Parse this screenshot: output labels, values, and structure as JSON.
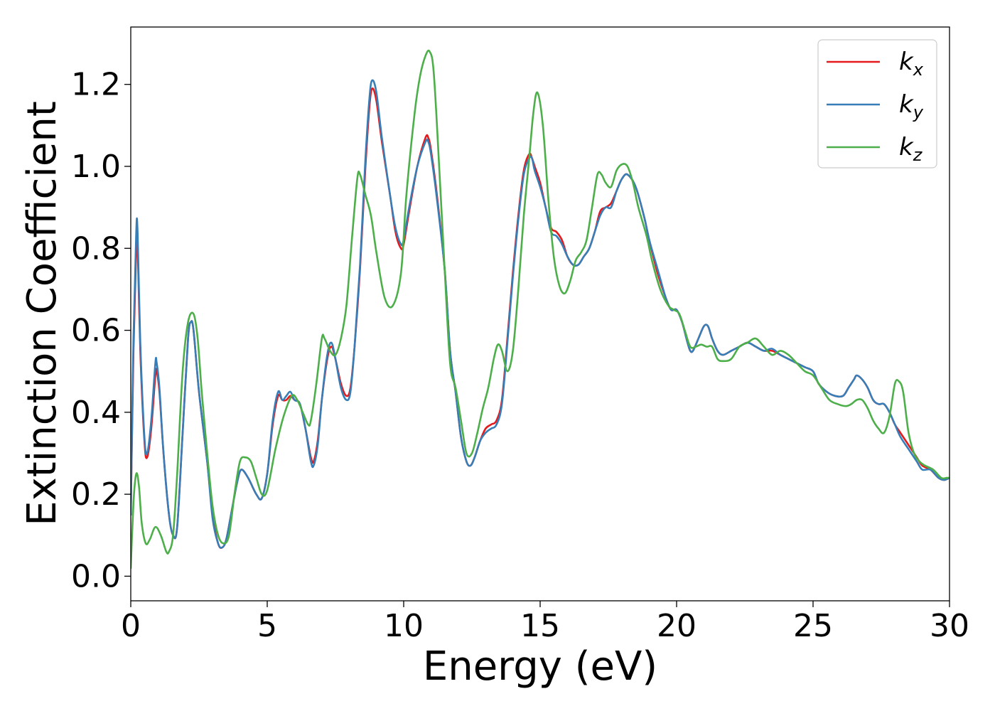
{
  "chart_data": {
    "type": "line",
    "title": "",
    "xlabel": "Energy (eV)",
    "ylabel": "Extinction Coefficient",
    "xlim": [
      0,
      30
    ],
    "ylim": [
      -0.06,
      1.34
    ],
    "xticks": [
      0,
      5,
      10,
      15,
      20,
      25,
      30
    ],
    "xtick_labels": [
      "0",
      "5",
      "10",
      "15",
      "20",
      "25",
      "30"
    ],
    "yticks": [
      0.0,
      0.2,
      0.4,
      0.6,
      0.8,
      1.0,
      1.2
    ],
    "ytick_labels": [
      "0.0",
      "0.2",
      "0.4",
      "0.6",
      "0.8",
      "1.0",
      "1.2"
    ],
    "grid": false,
    "legend_position": "top-right",
    "series": [
      {
        "name": "k_x",
        "legend_base": "k",
        "legend_sub": "x",
        "color": "#e41a1c",
        "x": [
          0,
          0.1,
          0.2,
          0.25,
          0.35,
          0.5,
          0.6,
          0.75,
          0.9,
          0.95,
          1.05,
          1.2,
          1.4,
          1.55,
          1.7,
          1.9,
          2.1,
          2.2,
          2.3,
          2.5,
          2.8,
          3.0,
          3.2,
          3.35,
          3.5,
          3.7,
          3.9,
          4.05,
          4.3,
          4.6,
          4.8,
          5.0,
          5.2,
          5.4,
          5.55,
          5.7,
          5.85,
          6.0,
          6.2,
          6.4,
          6.6,
          6.7,
          6.85,
          7.0,
          7.2,
          7.35,
          7.5,
          7.7,
          7.9,
          8.05,
          8.2,
          8.4,
          8.6,
          8.75,
          8.85,
          9.0,
          9.2,
          9.5,
          9.7,
          9.9,
          10.0,
          10.2,
          10.5,
          10.8,
          10.9,
          11.0,
          11.2,
          11.5,
          11.7,
          11.9,
          12.1,
          12.3,
          12.45,
          12.6,
          12.8,
          13.0,
          13.2,
          13.4,
          13.6,
          13.8,
          14.0,
          14.2,
          14.4,
          14.6,
          14.7,
          14.8,
          15.0,
          15.2,
          15.4,
          15.6,
          15.8,
          16.0,
          16.2,
          16.4,
          16.6,
          16.8,
          17.0,
          17.2,
          17.4,
          17.6,
          17.8,
          18.0,
          18.2,
          18.5,
          18.8,
          19.0,
          19.3,
          19.6,
          19.8,
          20.0,
          20.2,
          20.4,
          20.5,
          20.6,
          20.8,
          21.0,
          21.15,
          21.3,
          21.5,
          21.7,
          22.0,
          22.3,
          22.6,
          22.9,
          23.2,
          23.5,
          23.8,
          24.1,
          24.4,
          24.7,
          25.0,
          25.2,
          25.5,
          25.8,
          26.1,
          26.3,
          26.5,
          26.6,
          26.8,
          27.0,
          27.2,
          27.4,
          27.6,
          27.8,
          28.0,
          28.2,
          28.5,
          28.8,
          29.0,
          29.3,
          29.6,
          29.8,
          30.0
        ],
        "y": [
          0.15,
          0.55,
          0.8,
          0.81,
          0.55,
          0.33,
          0.29,
          0.36,
          0.49,
          0.5,
          0.45,
          0.3,
          0.15,
          0.1,
          0.12,
          0.35,
          0.58,
          0.62,
          0.6,
          0.45,
          0.28,
          0.15,
          0.08,
          0.07,
          0.09,
          0.16,
          0.23,
          0.26,
          0.24,
          0.2,
          0.19,
          0.25,
          0.37,
          0.44,
          0.43,
          0.43,
          0.44,
          0.43,
          0.42,
          0.36,
          0.29,
          0.28,
          0.33,
          0.43,
          0.53,
          0.56,
          0.53,
          0.47,
          0.44,
          0.46,
          0.56,
          0.75,
          1.0,
          1.15,
          1.19,
          1.16,
          1.06,
          0.93,
          0.84,
          0.8,
          0.81,
          0.89,
          1.0,
          1.07,
          1.07,
          1.04,
          0.94,
          0.75,
          0.55,
          0.45,
          0.34,
          0.28,
          0.27,
          0.29,
          0.33,
          0.36,
          0.37,
          0.38,
          0.43,
          0.58,
          0.74,
          0.88,
          0.99,
          1.03,
          1.02,
          1.0,
          0.96,
          0.9,
          0.85,
          0.84,
          0.82,
          0.78,
          0.76,
          0.76,
          0.78,
          0.8,
          0.84,
          0.89,
          0.9,
          0.91,
          0.94,
          0.97,
          0.98,
          0.95,
          0.88,
          0.82,
          0.74,
          0.68,
          0.65,
          0.65,
          0.62,
          0.57,
          0.55,
          0.55,
          0.58,
          0.61,
          0.61,
          0.58,
          0.55,
          0.54,
          0.55,
          0.56,
          0.57,
          0.56,
          0.55,
          0.55,
          0.54,
          0.53,
          0.52,
          0.51,
          0.5,
          0.47,
          0.45,
          0.44,
          0.44,
          0.46,
          0.48,
          0.49,
          0.48,
          0.46,
          0.43,
          0.42,
          0.42,
          0.4,
          0.37,
          0.35,
          0.32,
          0.29,
          0.27,
          0.26,
          0.24,
          0.235,
          0.24
        ]
      },
      {
        "name": "k_y",
        "legend_base": "k",
        "legend_sub": "y",
        "color": "#377eb8",
        "x": [
          0,
          0.1,
          0.2,
          0.25,
          0.35,
          0.5,
          0.6,
          0.75,
          0.9,
          0.95,
          1.05,
          1.2,
          1.4,
          1.55,
          1.7,
          1.9,
          2.1,
          2.2,
          2.3,
          2.5,
          2.8,
          3.0,
          3.2,
          3.35,
          3.5,
          3.7,
          3.9,
          4.05,
          4.3,
          4.6,
          4.8,
          5.0,
          5.2,
          5.4,
          5.55,
          5.7,
          5.85,
          6.0,
          6.2,
          6.4,
          6.6,
          6.7,
          6.85,
          7.0,
          7.2,
          7.35,
          7.5,
          7.7,
          7.9,
          8.05,
          8.2,
          8.4,
          8.6,
          8.75,
          8.85,
          9.0,
          9.2,
          9.5,
          9.7,
          9.9,
          10.0,
          10.2,
          10.5,
          10.8,
          10.9,
          11.0,
          11.2,
          11.5,
          11.7,
          11.9,
          12.1,
          12.3,
          12.45,
          12.6,
          12.8,
          13.0,
          13.2,
          13.4,
          13.6,
          13.8,
          14.0,
          14.2,
          14.4,
          14.6,
          14.7,
          14.8,
          15.0,
          15.2,
          15.4,
          15.6,
          15.8,
          16.0,
          16.2,
          16.4,
          16.6,
          16.8,
          17.0,
          17.2,
          17.4,
          17.6,
          17.8,
          18.0,
          18.2,
          18.5,
          18.8,
          19.0,
          19.3,
          19.6,
          19.8,
          20.0,
          20.2,
          20.4,
          20.5,
          20.6,
          20.8,
          21.0,
          21.15,
          21.3,
          21.5,
          21.7,
          22.0,
          22.3,
          22.6,
          22.9,
          23.2,
          23.5,
          23.8,
          24.1,
          24.4,
          24.7,
          25.0,
          25.2,
          25.5,
          25.8,
          26.1,
          26.3,
          26.5,
          26.6,
          26.8,
          27.0,
          27.2,
          27.4,
          27.6,
          27.8,
          28.0,
          28.2,
          28.5,
          28.8,
          29.0,
          29.3,
          29.6,
          29.8,
          30.0
        ],
        "y": [
          0.15,
          0.58,
          0.84,
          0.84,
          0.57,
          0.34,
          0.3,
          0.38,
          0.52,
          0.52,
          0.46,
          0.3,
          0.15,
          0.1,
          0.12,
          0.35,
          0.58,
          0.62,
          0.6,
          0.45,
          0.28,
          0.14,
          0.08,
          0.07,
          0.09,
          0.16,
          0.23,
          0.26,
          0.24,
          0.2,
          0.19,
          0.25,
          0.38,
          0.45,
          0.43,
          0.44,
          0.45,
          0.43,
          0.42,
          0.36,
          0.28,
          0.27,
          0.32,
          0.43,
          0.54,
          0.57,
          0.53,
          0.46,
          0.43,
          0.45,
          0.56,
          0.76,
          1.02,
          1.17,
          1.21,
          1.18,
          1.07,
          0.93,
          0.85,
          0.81,
          0.82,
          0.9,
          1.0,
          1.06,
          1.06,
          1.03,
          0.93,
          0.75,
          0.55,
          0.45,
          0.34,
          0.28,
          0.27,
          0.29,
          0.33,
          0.35,
          0.36,
          0.37,
          0.42,
          0.57,
          0.73,
          0.87,
          0.98,
          1.02,
          1.02,
          0.99,
          0.95,
          0.9,
          0.84,
          0.83,
          0.81,
          0.78,
          0.76,
          0.76,
          0.78,
          0.8,
          0.84,
          0.88,
          0.9,
          0.9,
          0.94,
          0.97,
          0.98,
          0.95,
          0.88,
          0.82,
          0.75,
          0.68,
          0.65,
          0.65,
          0.62,
          0.57,
          0.55,
          0.55,
          0.58,
          0.61,
          0.61,
          0.58,
          0.55,
          0.54,
          0.55,
          0.56,
          0.57,
          0.56,
          0.55,
          0.555,
          0.54,
          0.53,
          0.52,
          0.51,
          0.5,
          0.47,
          0.45,
          0.44,
          0.44,
          0.46,
          0.48,
          0.49,
          0.48,
          0.46,
          0.43,
          0.42,
          0.42,
          0.4,
          0.37,
          0.34,
          0.31,
          0.28,
          0.26,
          0.26,
          0.24,
          0.235,
          0.24
        ]
      },
      {
        "name": "k_z",
        "legend_base": "k",
        "legend_sub": "z",
        "color": "#4daf4a",
        "x": [
          0,
          0.1,
          0.2,
          0.3,
          0.4,
          0.55,
          0.7,
          0.9,
          1.1,
          1.3,
          1.4,
          1.55,
          1.7,
          1.9,
          2.1,
          2.3,
          2.45,
          2.6,
          2.8,
          3.0,
          3.2,
          3.4,
          3.6,
          3.8,
          4.0,
          4.2,
          4.4,
          4.6,
          4.8,
          5.0,
          5.3,
          5.6,
          5.9,
          6.1,
          6.3,
          6.5,
          6.6,
          6.8,
          7.0,
          7.1,
          7.3,
          7.5,
          7.7,
          7.9,
          8.1,
          8.3,
          8.4,
          8.6,
          8.8,
          9.0,
          9.3,
          9.6,
          9.9,
          10.1,
          10.4,
          10.6,
          10.8,
          10.95,
          11.1,
          11.3,
          11.5,
          11.7,
          11.9,
          12.1,
          12.3,
          12.5,
          12.7,
          12.9,
          13.1,
          13.3,
          13.45,
          13.6,
          13.8,
          14.0,
          14.2,
          14.4,
          14.6,
          14.75,
          14.9,
          15.1,
          15.3,
          15.5,
          15.7,
          15.9,
          16.1,
          16.3,
          16.5,
          16.7,
          16.9,
          17.1,
          17.25,
          17.4,
          17.6,
          17.8,
          18.0,
          18.2,
          18.4,
          18.6,
          18.9,
          19.1,
          19.4,
          19.7,
          19.9,
          20.1,
          20.3,
          20.5,
          20.7,
          20.9,
          21.1,
          21.3,
          21.5,
          21.7,
          22.0,
          22.3,
          22.6,
          22.9,
          23.2,
          23.5,
          23.8,
          24.1,
          24.4,
          24.7,
          25.0,
          25.3,
          25.6,
          25.9,
          26.2,
          26.4,
          26.6,
          26.8,
          27.0,
          27.2,
          27.4,
          27.6,
          27.8,
          28.0,
          28.15,
          28.3,
          28.5,
          28.7,
          28.9,
          29.1,
          29.4,
          29.7,
          29.9,
          30.0
        ],
        "y": [
          0.02,
          0.18,
          0.25,
          0.22,
          0.13,
          0.08,
          0.09,
          0.12,
          0.1,
          0.06,
          0.06,
          0.1,
          0.25,
          0.5,
          0.62,
          0.64,
          0.58,
          0.45,
          0.3,
          0.17,
          0.1,
          0.08,
          0.1,
          0.2,
          0.28,
          0.29,
          0.28,
          0.24,
          0.2,
          0.21,
          0.31,
          0.39,
          0.44,
          0.43,
          0.4,
          0.37,
          0.38,
          0.47,
          0.58,
          0.58,
          0.55,
          0.54,
          0.58,
          0.66,
          0.82,
          0.97,
          0.98,
          0.93,
          0.88,
          0.79,
          0.68,
          0.66,
          0.74,
          0.93,
          1.13,
          1.22,
          1.27,
          1.28,
          1.23,
          1.0,
          0.75,
          0.52,
          0.46,
          0.38,
          0.3,
          0.3,
          0.35,
          0.41,
          0.46,
          0.53,
          0.565,
          0.55,
          0.5,
          0.55,
          0.7,
          0.88,
          1.02,
          1.13,
          1.18,
          1.1,
          0.92,
          0.78,
          0.71,
          0.69,
          0.72,
          0.77,
          0.79,
          0.82,
          0.9,
          0.98,
          0.98,
          0.96,
          0.95,
          0.99,
          1.005,
          1.0,
          0.96,
          0.9,
          0.83,
          0.77,
          0.7,
          0.66,
          0.65,
          0.64,
          0.6,
          0.56,
          0.56,
          0.565,
          0.56,
          0.56,
          0.53,
          0.525,
          0.53,
          0.56,
          0.57,
          0.58,
          0.56,
          0.54,
          0.55,
          0.54,
          0.52,
          0.5,
          0.49,
          0.46,
          0.43,
          0.42,
          0.415,
          0.42,
          0.43,
          0.43,
          0.41,
          0.38,
          0.36,
          0.35,
          0.39,
          0.47,
          0.475,
          0.45,
          0.35,
          0.3,
          0.28,
          0.27,
          0.26,
          0.24,
          0.24,
          0.24
        ]
      }
    ]
  }
}
